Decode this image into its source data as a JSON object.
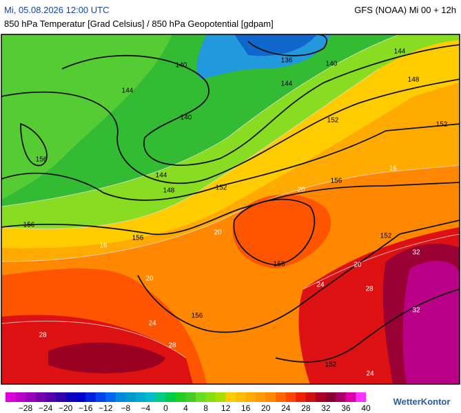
{
  "header": {
    "datetime": "Mi, 05.08.2026 12:00 UTC",
    "model": "GFS (NOAA) Mi 00 + 12h",
    "subtitle": "850 hPa Temperatur [Grad Celsius] / 850 hPa Geopotential [gdpam]"
  },
  "map": {
    "geopotential_labels": [
      140,
      136,
      140,
      144,
      144,
      144,
      148,
      140,
      152,
      152,
      156,
      144,
      148,
      152,
      156,
      156,
      156,
      156,
      152,
      156,
      152
    ],
    "isotherm_labels": [
      16,
      20,
      20,
      20,
      20,
      24,
      24,
      28,
      28,
      28,
      32,
      32,
      24,
      16
    ]
  },
  "colorbar": {
    "labels": [
      "−28",
      "−24",
      "−20",
      "−16",
      "−12",
      "−8",
      "−4",
      "0",
      "4",
      "8",
      "12",
      "16",
      "20",
      "24",
      "28",
      "32",
      "36",
      "40"
    ],
    "colors": [
      "#dd00dd",
      "#bb00cc",
      "#9900bb",
      "#7700aa",
      "#5500aa",
      "#3300aa",
      "#1100bb",
      "#0000cc",
      "#0022dd",
      "#0044ee",
      "#0066ee",
      "#0088dd",
      "#0099cc",
      "#00aacc",
      "#00bbcc",
      "#00cc88",
      "#00cc44",
      "#22cc22",
      "#44cc22",
      "#66dd22",
      "#88dd11",
      "#aadd00",
      "#ffcc00",
      "#ffbb00",
      "#ffaa00",
      "#ff9900",
      "#ff8800",
      "#ff6600",
      "#ff4400",
      "#ee2200",
      "#cc1111",
      "#aa0022",
      "#880033",
      "#aa0066",
      "#dd00aa",
      "#ff33ff"
    ]
  },
  "logo": "WetterKontor"
}
